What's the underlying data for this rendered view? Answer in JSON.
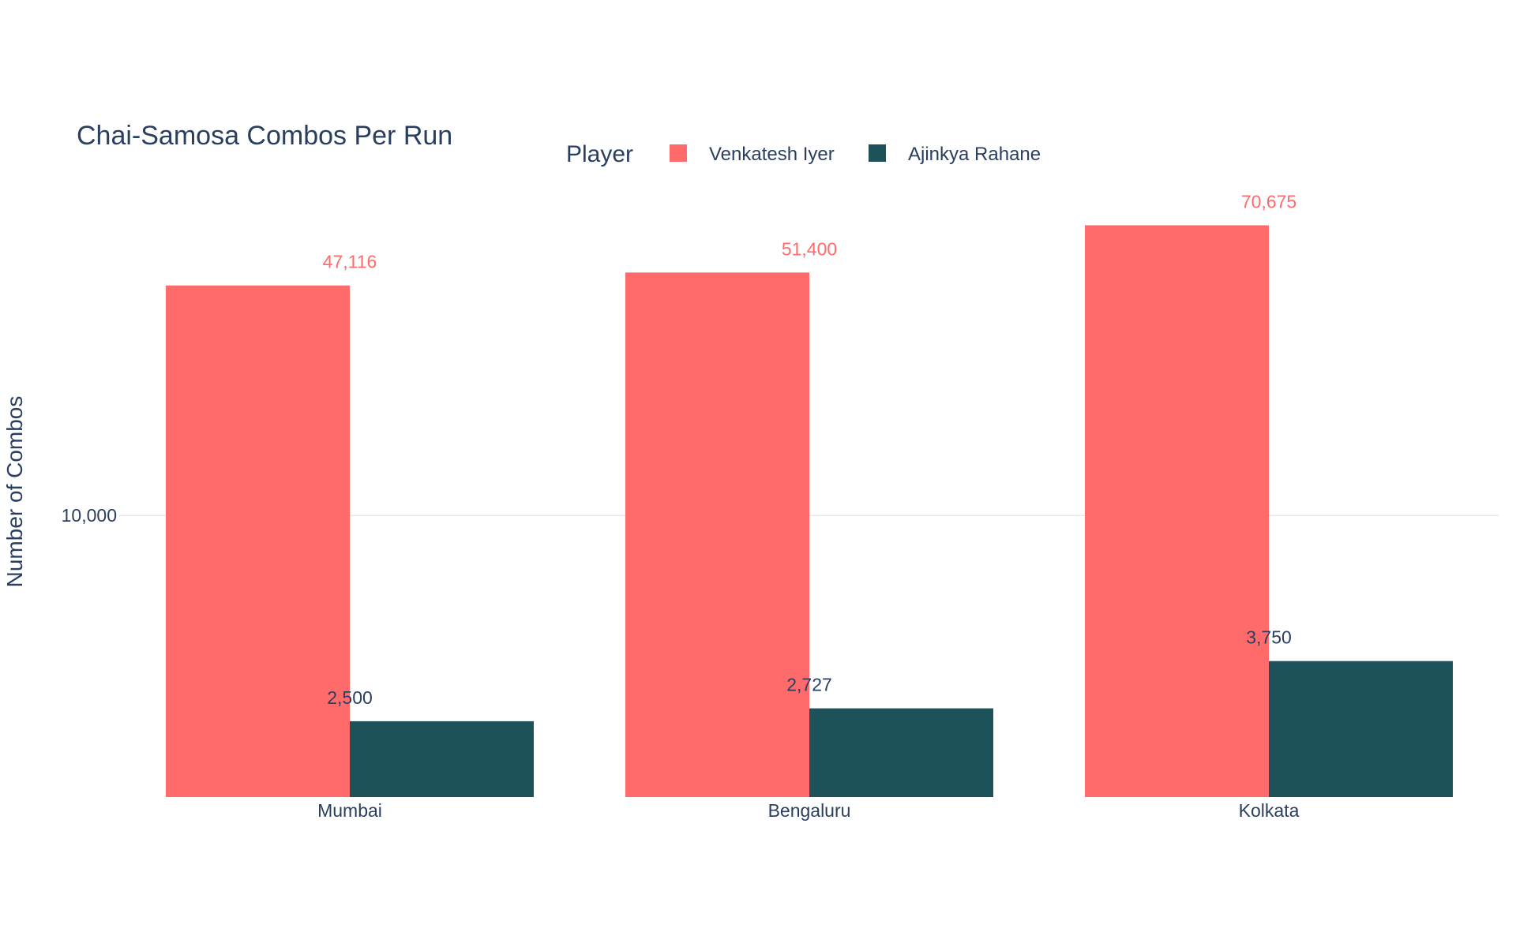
{
  "chart_data": {
    "type": "bar",
    "title": "Chai-Samosa Combos Per Run",
    "xlabel": "",
    "ylabel": "Number of Combos",
    "legend": {
      "title": "Player",
      "placement": "top-center",
      "orientation": "horizontal"
    },
    "categories": [
      "Mumbai",
      "Bengaluru",
      "Kolkata"
    ],
    "series": [
      {
        "name": "Venkatesh Iyer",
        "color": "#ff6b6b",
        "values": [
          47116,
          51400,
          70675
        ],
        "labels": [
          "47,116",
          "51,400",
          "70,675"
        ]
      },
      {
        "name": "Ajinkya Rahane",
        "color": "#1d525a",
        "values": [
          2500,
          2727,
          3750
        ],
        "labels": [
          "2,500",
          "2,727",
          "3,750"
        ]
      }
    ],
    "yscale": "log",
    "ylim": [
      1500,
      90000
    ],
    "yticks": [
      10000
    ],
    "ytick_labels": [
      "10,000"
    ],
    "grid": true,
    "gridColor": "#e8e8e8"
  }
}
